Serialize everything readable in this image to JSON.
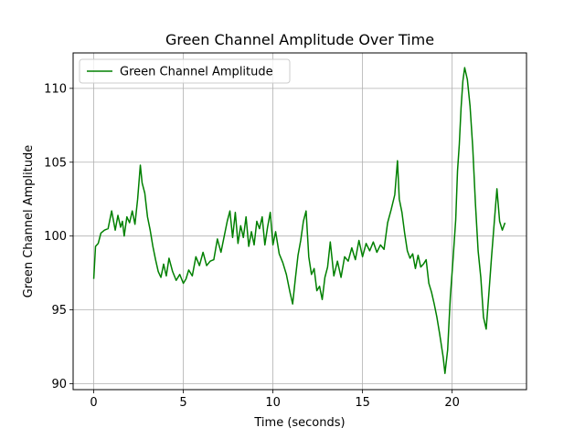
{
  "chart_data": {
    "type": "line",
    "title": "Green Channel Amplitude Over Time",
    "xlabel": "Time (seconds)",
    "ylabel": "Green Channel Amplitude",
    "xlim": [
      -1.15,
      24.15
    ],
    "ylim": [
      89.6,
      112.4
    ],
    "xticks": [
      0,
      5,
      10,
      15,
      20
    ],
    "yticks": [
      90,
      95,
      100,
      105,
      110
    ],
    "xtick_labels": [
      "0",
      "5",
      "10",
      "15",
      "20"
    ],
    "ytick_labels": [
      "90",
      "95",
      "100",
      "105",
      "110"
    ],
    "grid": true,
    "legend_position": "top-left",
    "series": [
      {
        "name": "Green Channel Amplitude",
        "color": "#008000",
        "x": [
          0.0,
          0.1,
          0.25,
          0.4,
          0.6,
          0.8,
          1.0,
          1.2,
          1.35,
          1.5,
          1.6,
          1.7,
          1.85,
          2.0,
          2.15,
          2.3,
          2.45,
          2.6,
          2.7,
          2.85,
          3.0,
          3.15,
          3.3,
          3.45,
          3.6,
          3.75,
          3.9,
          4.05,
          4.2,
          4.4,
          4.6,
          4.8,
          5.0,
          5.15,
          5.3,
          5.5,
          5.7,
          5.9,
          6.1,
          6.3,
          6.5,
          6.7,
          6.9,
          7.1,
          7.3,
          7.45,
          7.6,
          7.75,
          7.9,
          8.05,
          8.2,
          8.35,
          8.5,
          8.65,
          8.8,
          8.95,
          9.1,
          9.25,
          9.4,
          9.55,
          9.7,
          9.85,
          10.0,
          10.15,
          10.35,
          10.55,
          10.75,
          10.95,
          11.1,
          11.25,
          11.4,
          11.55,
          11.7,
          11.85,
          12.0,
          12.15,
          12.3,
          12.45,
          12.6,
          12.75,
          12.9,
          13.05,
          13.2,
          13.4,
          13.6,
          13.8,
          14.0,
          14.2,
          14.4,
          14.6,
          14.8,
          15.0,
          15.2,
          15.4,
          15.6,
          15.8,
          16.0,
          16.2,
          16.4,
          16.6,
          16.8,
          16.95,
          17.05,
          17.2,
          17.35,
          17.5,
          17.65,
          17.8,
          17.95,
          18.1,
          18.25,
          18.4,
          18.55,
          18.7,
          18.85,
          19.0,
          19.15,
          19.3,
          19.4,
          19.5,
          19.6,
          19.75,
          19.9,
          20.05,
          20.2,
          20.3,
          20.4,
          20.5,
          20.6,
          20.7,
          20.85,
          21.0,
          21.15,
          21.3,
          21.45,
          21.6,
          21.75,
          21.9,
          22.05,
          22.2,
          22.35,
          22.5,
          22.65,
          22.8,
          22.95
        ],
        "values": [
          97.1,
          99.3,
          99.5,
          100.2,
          100.4,
          100.5,
          101.7,
          100.4,
          101.4,
          100.6,
          101.0,
          100.0,
          101.3,
          100.9,
          101.7,
          100.8,
          102.5,
          104.8,
          103.6,
          102.9,
          101.3,
          100.4,
          99.3,
          98.4,
          97.6,
          97.2,
          98.1,
          97.3,
          98.5,
          97.6,
          97.0,
          97.4,
          96.8,
          97.1,
          97.7,
          97.3,
          98.6,
          98.0,
          98.9,
          98.0,
          98.3,
          98.4,
          99.8,
          98.9,
          100.1,
          101.0,
          101.7,
          99.9,
          101.6,
          99.5,
          100.7,
          99.9,
          101.3,
          99.3,
          100.3,
          99.4,
          101.0,
          100.5,
          101.3,
          99.4,
          100.6,
          101.6,
          99.4,
          100.3,
          98.8,
          98.2,
          97.4,
          96.2,
          95.4,
          97.1,
          98.7,
          99.7,
          101.0,
          101.7,
          98.6,
          97.4,
          97.8,
          96.3,
          96.6,
          95.7,
          97.2,
          97.9,
          99.6,
          97.3,
          98.3,
          97.2,
          98.6,
          98.3,
          99.2,
          98.4,
          99.7,
          98.6,
          99.5,
          99.0,
          99.6,
          98.9,
          99.4,
          99.1,
          100.9,
          101.8,
          102.8,
          105.1,
          102.5,
          101.6,
          100.2,
          99.0,
          98.5,
          98.8,
          97.8,
          98.7,
          97.9,
          98.1,
          98.4,
          96.8,
          96.2,
          95.4,
          94.5,
          93.4,
          92.6,
          91.8,
          90.7,
          92.3,
          95.9,
          98.4,
          101.1,
          104.4,
          106.2,
          108.7,
          110.5,
          111.4,
          110.6,
          108.8,
          106.0,
          102.2,
          99.0,
          97.2,
          94.5,
          93.7,
          96.1,
          98.6,
          100.9,
          103.2,
          101.0,
          100.4,
          100.9
        ]
      }
    ]
  }
}
